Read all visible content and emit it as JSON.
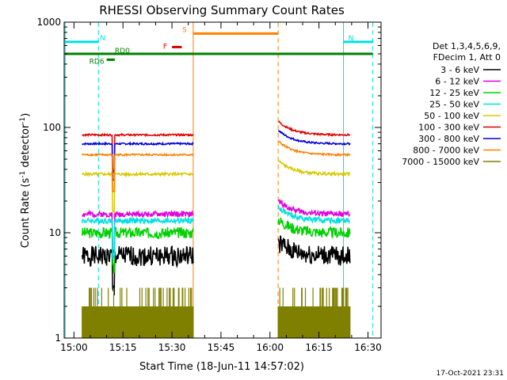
{
  "title": "RHESSI Observing Summary Count Rates",
  "footer_date": "17-Oct-2021 23:31",
  "chart_data": {
    "type": "line",
    "title": "RHESSI Observing Summary Count Rates",
    "xlabel": "Start Time (18-Jun-11 14:57:02)",
    "ylabel_main": "Count Rate (s",
    "ylabel_sup1": "-1",
    "ylabel_mid": " detector",
    "ylabel_sup2": "-1",
    "ylabel_end": ")",
    "x_unit": "minutes since 14:57:02",
    "xlim": [
      0,
      97
    ],
    "ylim": [
      1,
      1000
    ],
    "y_scale": "log",
    "x_ticks": [
      {
        "t": 3,
        "label": "15:00"
      },
      {
        "t": 18,
        "label": "15:15"
      },
      {
        "t": 33,
        "label": "15:30"
      },
      {
        "t": 48,
        "label": "15:45"
      },
      {
        "t": 63,
        "label": "16:00"
      },
      {
        "t": 78,
        "label": "16:15"
      },
      {
        "t": 93,
        "label": "16:30"
      }
    ],
    "y_ticks": [
      {
        "v": 1,
        "label": "1"
      },
      {
        "v": 10,
        "label": "10"
      },
      {
        "v": 100,
        "label": "100"
      },
      {
        "v": 1000,
        "label": "1000"
      }
    ],
    "legend_header": [
      "Det 1,3,4,5,6,9,",
      "FDecim 1, Att 0"
    ],
    "legend_position": "right",
    "series": [
      {
        "name": "3 - 6 keV",
        "color": "#000000",
        "base": 6,
        "noise": 0.22,
        "seed": 1
      },
      {
        "name": "6 - 12 keV",
        "color": "#e000e0",
        "base": 15,
        "noise": 0.06,
        "seed": 2
      },
      {
        "name": "12 - 25 keV",
        "color": "#00d000",
        "base": 10,
        "noise": 0.12,
        "seed": 3
      },
      {
        "name": "25 - 50 keV",
        "color": "#00e0e0",
        "base": 13,
        "noise": 0.06,
        "seed": 4
      },
      {
        "name": "50 - 100 keV",
        "color": "#d8c800",
        "base": 36,
        "noise": 0.03,
        "seed": 5
      },
      {
        "name": "100 - 300 keV",
        "color": "#e00000",
        "base": 85,
        "noise": 0.02,
        "seed": 6
      },
      {
        "name": "300 - 800 keV",
        "color": "#0000e0",
        "base": 70,
        "noise": 0.02,
        "seed": 7
      },
      {
        "name": "800 - 7000 keV",
        "color": "#ff8000",
        "base": 55,
        "noise": 0.02,
        "seed": 8
      },
      {
        "name": "7000 - 15000 keV",
        "color": "#808000",
        "base": 1.5,
        "noise": 0.0,
        "seed": 9
      }
    ],
    "segments": [
      {
        "t0": 5.5,
        "t1": 39.5
      },
      {
        "t0": 65.5,
        "t1": 87.5
      }
    ],
    "flags": [
      {
        "label": "N",
        "color": "#00e0e0",
        "t0": 0.3,
        "t1": 10.5,
        "y": 650
      },
      {
        "label": "N",
        "color": "#00e0e0",
        "t0": 85.5,
        "t1": 94.5,
        "y": 650
      },
      {
        "label": "S",
        "color": "#ff8000",
        "t0": 39.5,
        "t1": 65.5,
        "y": 780
      },
      {
        "label": "F",
        "color": "#e00000",
        "t0": 33,
        "t1": 36,
        "y": 580
      },
      {
        "label": "RD0",
        "color": "#008000",
        "t0": 0.3,
        "t1": 94.5,
        "y": 500
      },
      {
        "label": "RD6",
        "color": "#008000",
        "t0": 13,
        "t1": 15.5,
        "y": 440
      }
    ],
    "vlines": [
      {
        "t": 0.3,
        "color": "#00e0e0",
        "style": "solid"
      },
      {
        "t": 10.5,
        "color": "#00e0e0",
        "style": "dashed"
      },
      {
        "t": 39.5,
        "color": "#ff8000",
        "style": "solid"
      },
      {
        "t": 65.5,
        "color": "#ff8000",
        "style": "dashed"
      },
      {
        "t": 85.5,
        "color": "#00e0e0",
        "style": "solid"
      },
      {
        "t": 94.5,
        "color": "#00e0e0",
        "style": "dashed"
      }
    ]
  }
}
